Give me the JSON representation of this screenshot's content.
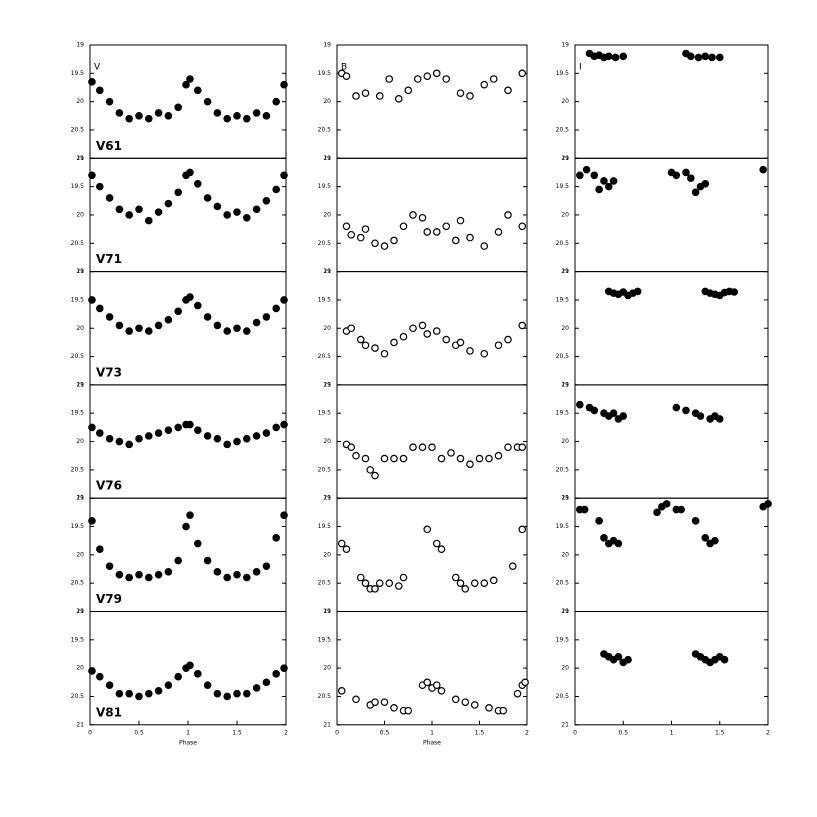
{
  "chart_data": [
    {
      "type": "scatter",
      "band": "V",
      "label": "V61",
      "marker": "filled",
      "xlim": [
        0,
        2
      ],
      "ylim": [
        21,
        19
      ],
      "yticks": [
        19,
        19.5,
        20,
        20.5,
        21
      ],
      "x": [
        0.02,
        0.1,
        0.2,
        0.3,
        0.4,
        0.5,
        0.6,
        0.7,
        0.8,
        0.9,
        0.98,
        1.02,
        1.1,
        1.2,
        1.3,
        1.4,
        1.5,
        1.6,
        1.7,
        1.8,
        1.9,
        1.98
      ],
      "y": [
        19.65,
        19.8,
        20.0,
        20.2,
        20.3,
        20.25,
        20.3,
        20.2,
        20.25,
        20.1,
        19.7,
        19.6,
        19.8,
        20.0,
        20.2,
        20.3,
        20.25,
        20.3,
        20.2,
        20.25,
        20.0,
        19.7
      ]
    },
    {
      "type": "scatter",
      "band": "B",
      "marker": "open",
      "xlim": [
        0,
        2
      ],
      "ylim": [
        21,
        19
      ],
      "yticks": [
        19,
        19.5,
        20,
        20.5,
        21
      ],
      "x": [
        0.05,
        0.1,
        0.2,
        0.3,
        0.45,
        0.55,
        0.65,
        0.75,
        0.85,
        0.95,
        1.05,
        1.15,
        1.3,
        1.4,
        1.55,
        1.65,
        1.8,
        1.95
      ],
      "y": [
        19.5,
        19.55,
        19.9,
        19.85,
        19.9,
        19.6,
        19.95,
        19.8,
        19.6,
        19.55,
        19.5,
        19.6,
        19.85,
        19.9,
        19.7,
        19.6,
        19.8,
        19.5
      ]
    },
    {
      "type": "scatter",
      "band": "I",
      "marker": "filled",
      "xlim": [
        0,
        2
      ],
      "ylim": [
        21,
        19
      ],
      "yticks": [
        19,
        19.5,
        20,
        20.5,
        21
      ],
      "x": [
        0.15,
        0.2,
        0.25,
        0.3,
        0.35,
        0.42,
        0.5,
        1.15,
        1.2,
        1.28,
        1.35,
        1.42,
        1.5
      ],
      "y": [
        19.15,
        19.2,
        19.18,
        19.22,
        19.2,
        19.22,
        19.2,
        19.15,
        19.2,
        19.22,
        19.2,
        19.22,
        19.22
      ]
    },
    {
      "type": "scatter",
      "label": "V71",
      "marker": "filled",
      "xlim": [
        0,
        2
      ],
      "ylim": [
        21,
        19
      ],
      "yticks": [
        19,
        19.5,
        20,
        20.5,
        21
      ],
      "x": [
        0.02,
        0.1,
        0.2,
        0.3,
        0.4,
        0.5,
        0.6,
        0.7,
        0.8,
        0.9,
        0.98,
        1.02,
        1.1,
        1.2,
        1.3,
        1.4,
        1.5,
        1.6,
        1.7,
        1.8,
        1.9,
        1.98
      ],
      "y": [
        19.3,
        19.5,
        19.7,
        19.9,
        20.0,
        19.9,
        20.1,
        19.95,
        19.8,
        19.6,
        19.3,
        19.25,
        19.45,
        19.7,
        19.85,
        20.0,
        19.95,
        20.05,
        19.9,
        19.75,
        19.55,
        19.3
      ]
    },
    {
      "type": "scatter",
      "marker": "open",
      "xlim": [
        0,
        2
      ],
      "ylim": [
        21,
        19
      ],
      "yticks": [
        19,
        19.5,
        20,
        20.5,
        21
      ],
      "x": [
        0.1,
        0.15,
        0.25,
        0.3,
        0.4,
        0.5,
        0.6,
        0.7,
        0.8,
        0.9,
        0.95,
        1.05,
        1.15,
        1.25,
        1.3,
        1.4,
        1.55,
        1.7,
        1.8,
        1.95
      ],
      "y": [
        20.2,
        20.35,
        20.4,
        20.25,
        20.5,
        20.55,
        20.45,
        20.2,
        20.0,
        20.05,
        20.3,
        20.3,
        20.2,
        20.45,
        20.1,
        20.4,
        20.55,
        20.3,
        20.0,
        20.2
      ]
    },
    {
      "type": "scatter",
      "marker": "filled",
      "xlim": [
        0,
        2
      ],
      "ylim": [
        21,
        19
      ],
      "yticks": [
        19,
        19.5,
        20,
        20.5,
        21
      ],
      "x": [
        0.05,
        0.12,
        0.2,
        0.25,
        0.3,
        0.35,
        0.4,
        1.0,
        1.05,
        1.15,
        1.2,
        1.25,
        1.3,
        1.35,
        1.95
      ],
      "y": [
        19.3,
        19.2,
        19.3,
        19.55,
        19.4,
        19.5,
        19.4,
        19.25,
        19.3,
        19.25,
        19.35,
        19.6,
        19.5,
        19.45,
        19.2
      ]
    },
    {
      "type": "scatter",
      "label": "V73",
      "marker": "filled",
      "xlim": [
        0,
        2
      ],
      "ylim": [
        21,
        19
      ],
      "yticks": [
        19,
        19.5,
        20,
        20.5,
        21
      ],
      "x": [
        0.02,
        0.1,
        0.2,
        0.3,
        0.4,
        0.5,
        0.6,
        0.7,
        0.8,
        0.9,
        0.98,
        1.02,
        1.1,
        1.2,
        1.3,
        1.4,
        1.5,
        1.6,
        1.7,
        1.8,
        1.9,
        1.98
      ],
      "y": [
        19.5,
        19.65,
        19.8,
        19.95,
        20.05,
        20.0,
        20.05,
        19.95,
        19.85,
        19.7,
        19.5,
        19.45,
        19.6,
        19.8,
        19.95,
        20.05,
        20.0,
        20.05,
        19.9,
        19.8,
        19.65,
        19.5
      ]
    },
    {
      "type": "scatter",
      "marker": "open",
      "xlim": [
        0,
        2
      ],
      "ylim": [
        21,
        19
      ],
      "yticks": [
        19,
        19.5,
        20,
        20.5,
        21
      ],
      "x": [
        0.1,
        0.15,
        0.25,
        0.3,
        0.4,
        0.5,
        0.6,
        0.7,
        0.8,
        0.9,
        0.95,
        1.05,
        1.15,
        1.25,
        1.3,
        1.4,
        1.55,
        1.7,
        1.8,
        1.95
      ],
      "y": [
        20.05,
        20.0,
        20.2,
        20.3,
        20.35,
        20.45,
        20.25,
        20.15,
        20.0,
        19.95,
        20.1,
        20.05,
        20.2,
        20.3,
        20.25,
        20.4,
        20.45,
        20.3,
        20.2,
        19.95
      ]
    },
    {
      "type": "scatter",
      "marker": "filled",
      "xlim": [
        0,
        2
      ],
      "ylim": [
        21,
        19
      ],
      "yticks": [
        19,
        19.5,
        20,
        20.5,
        21
      ],
      "x": [
        0.35,
        0.4,
        0.45,
        0.5,
        0.55,
        0.6,
        0.65,
        1.35,
        1.4,
        1.45,
        1.5,
        1.55,
        1.6,
        1.65
      ],
      "y": [
        19.35,
        19.38,
        19.4,
        19.36,
        19.42,
        19.38,
        19.35,
        19.35,
        19.38,
        19.4,
        19.42,
        19.37,
        19.35,
        19.36
      ]
    },
    {
      "type": "scatter",
      "label": "V76",
      "marker": "filled",
      "xlim": [
        0,
        2
      ],
      "ylim": [
        21,
        19
      ],
      "yticks": [
        19,
        19.5,
        20,
        20.5,
        21
      ],
      "x": [
        0.02,
        0.1,
        0.2,
        0.3,
        0.4,
        0.5,
        0.6,
        0.7,
        0.8,
        0.9,
        0.98,
        1.02,
        1.1,
        1.2,
        1.3,
        1.4,
        1.5,
        1.6,
        1.7,
        1.8,
        1.9,
        1.98
      ],
      "y": [
        19.75,
        19.85,
        19.95,
        20.0,
        20.05,
        19.95,
        19.9,
        19.85,
        19.8,
        19.75,
        19.7,
        19.7,
        19.8,
        19.9,
        19.95,
        20.05,
        20.0,
        19.95,
        19.9,
        19.85,
        19.75,
        19.7
      ]
    },
    {
      "type": "scatter",
      "marker": "open",
      "xlim": [
        0,
        2
      ],
      "ylim": [
        21,
        19
      ],
      "yticks": [
        19,
        19.5,
        20,
        20.5,
        21
      ],
      "x": [
        0.1,
        0.15,
        0.2,
        0.3,
        0.35,
        0.4,
        0.5,
        0.6,
        0.7,
        0.8,
        0.9,
        1.0,
        1.1,
        1.2,
        1.3,
        1.4,
        1.5,
        1.6,
        1.7,
        1.8,
        1.9,
        1.95
      ],
      "y": [
        20.05,
        20.1,
        20.25,
        20.3,
        20.5,
        20.6,
        20.3,
        20.3,
        20.3,
        20.1,
        20.1,
        20.1,
        20.3,
        20.2,
        20.3,
        20.4,
        20.3,
        20.3,
        20.25,
        20.1,
        20.1,
        20.1
      ]
    },
    {
      "type": "scatter",
      "marker": "filled",
      "xlim": [
        0,
        2
      ],
      "ylim": [
        21,
        19
      ],
      "yticks": [
        19,
        19.5,
        20,
        20.5,
        21
      ],
      "x": [
        0.05,
        0.15,
        0.2,
        0.3,
        0.35,
        0.4,
        0.45,
        0.5,
        1.05,
        1.15,
        1.25,
        1.3,
        1.4,
        1.45,
        1.5
      ],
      "y": [
        19.35,
        19.4,
        19.45,
        19.5,
        19.55,
        19.5,
        19.6,
        19.55,
        19.4,
        19.45,
        19.5,
        19.55,
        19.6,
        19.55,
        19.6
      ]
    },
    {
      "type": "scatter",
      "label": "V79",
      "marker": "filled",
      "xlim": [
        0,
        2
      ],
      "ylim": [
        21,
        19
      ],
      "yticks": [
        19,
        19.5,
        20,
        20.5,
        21
      ],
      "x": [
        0.02,
        0.1,
        0.2,
        0.3,
        0.4,
        0.5,
        0.6,
        0.7,
        0.8,
        0.9,
        0.98,
        1.02,
        1.1,
        1.2,
        1.3,
        1.4,
        1.5,
        1.6,
        1.7,
        1.8,
        1.9,
        1.98
      ],
      "y": [
        19.4,
        19.9,
        20.2,
        20.35,
        20.4,
        20.35,
        20.4,
        20.35,
        20.3,
        20.1,
        19.5,
        19.3,
        19.8,
        20.1,
        20.3,
        20.4,
        20.35,
        20.4,
        20.3,
        20.2,
        19.7,
        19.3
      ]
    },
    {
      "type": "scatter",
      "marker": "open",
      "xlim": [
        0,
        2
      ],
      "ylim": [
        21,
        19
      ],
      "yticks": [
        19,
        19.5,
        20,
        20.5,
        21
      ],
      "x": [
        0.05,
        0.1,
        0.25,
        0.3,
        0.35,
        0.4,
        0.45,
        0.55,
        0.65,
        0.7,
        0.95,
        1.05,
        1.1,
        1.25,
        1.3,
        1.35,
        1.45,
        1.55,
        1.65,
        1.85,
        1.95
      ],
      "y": [
        19.8,
        19.9,
        20.4,
        20.5,
        20.6,
        20.6,
        20.5,
        20.5,
        20.55,
        20.4,
        19.55,
        19.8,
        19.9,
        20.4,
        20.5,
        20.6,
        20.5,
        20.5,
        20.45,
        20.2,
        19.55
      ]
    },
    {
      "type": "scatter",
      "marker": "filled",
      "xlim": [
        0,
        2
      ],
      "ylim": [
        21,
        19
      ],
      "yticks": [
        19,
        19.5,
        20,
        20.5,
        21
      ],
      "x": [
        0.05,
        0.1,
        0.25,
        0.3,
        0.35,
        0.4,
        0.45,
        0.85,
        0.9,
        0.95,
        1.05,
        1.1,
        1.25,
        1.35,
        1.4,
        1.45,
        1.95,
        2.0
      ],
      "y": [
        19.2,
        19.2,
        19.4,
        19.7,
        19.8,
        19.75,
        19.8,
        19.25,
        19.15,
        19.1,
        19.2,
        19.2,
        19.4,
        19.7,
        19.8,
        19.75,
        19.15,
        19.1
      ]
    },
    {
      "type": "scatter",
      "label": "V81",
      "marker": "filled",
      "xlim": [
        0,
        2
      ],
      "ylim": [
        21,
        19
      ],
      "yticks": [
        19,
        19.5,
        20,
        20.5,
        21
      ],
      "xticks": [
        0,
        0.5,
        1,
        1.5,
        2
      ],
      "xlabel": "Phase",
      "x": [
        0.02,
        0.1,
        0.2,
        0.3,
        0.4,
        0.5,
        0.6,
        0.7,
        0.8,
        0.9,
        0.98,
        1.02,
        1.1,
        1.2,
        1.3,
        1.4,
        1.5,
        1.6,
        1.7,
        1.8,
        1.9,
        1.98
      ],
      "y": [
        20.05,
        20.15,
        20.3,
        20.45,
        20.45,
        20.5,
        20.45,
        20.4,
        20.3,
        20.15,
        20.0,
        19.95,
        20.1,
        20.3,
        20.45,
        20.5,
        20.45,
        20.45,
        20.35,
        20.25,
        20.1,
        20.0
      ]
    },
    {
      "type": "scatter",
      "marker": "open",
      "xlim": [
        0,
        2
      ],
      "ylim": [
        21,
        19
      ],
      "yticks": [
        19,
        19.5,
        20,
        20.5,
        21
      ],
      "xticks": [
        0,
        0.5,
        1,
        1.5,
        2
      ],
      "xlabel": "Phase",
      "x": [
        0.05,
        0.2,
        0.35,
        0.4,
        0.5,
        0.6,
        0.7,
        0.75,
        0.9,
        0.95,
        1.0,
        1.05,
        1.1,
        1.25,
        1.35,
        1.45,
        1.6,
        1.7,
        1.75,
        1.9,
        1.95,
        1.98
      ],
      "y": [
        20.4,
        20.55,
        20.65,
        20.6,
        20.6,
        20.7,
        20.75,
        20.75,
        20.3,
        20.25,
        20.35,
        20.3,
        20.4,
        20.55,
        20.6,
        20.65,
        20.7,
        20.75,
        20.75,
        20.45,
        20.3,
        20.25
      ]
    },
    {
      "type": "scatter",
      "marker": "filled",
      "xlim": [
        0,
        2
      ],
      "ylim": [
        21,
        19
      ],
      "yticks": [
        19,
        19.5,
        20,
        20.5,
        21
      ],
      "xticks": [
        0,
        0.5,
        1,
        1.5,
        2
      ],
      "x": [
        0.3,
        0.35,
        0.4,
        0.45,
        0.5,
        0.55,
        1.25,
        1.3,
        1.35,
        1.4,
        1.45,
        1.5,
        1.55
      ],
      "y": [
        19.75,
        19.8,
        19.85,
        19.8,
        19.9,
        19.85,
        19.75,
        19.8,
        19.85,
        19.9,
        19.85,
        19.8,
        19.85
      ]
    }
  ]
}
